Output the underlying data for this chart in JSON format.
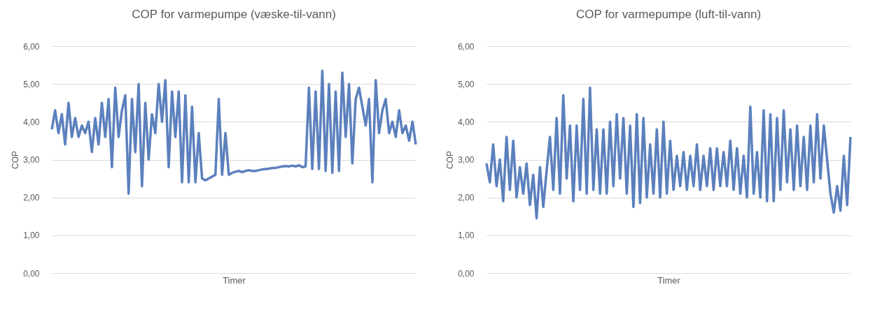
{
  "chart_data": [
    {
      "type": "line",
      "title": "COP for varmepumpe (væske-til-vann)",
      "xlabel": "Timer",
      "ylabel": "COP",
      "color": "#5b80bd",
      "grid": "y",
      "tick_labels": "y",
      "ylim": [
        0,
        6
      ],
      "yticks": [
        {
          "value": 0,
          "label": "0,00"
        },
        {
          "value": 1,
          "label": "1,00"
        },
        {
          "value": 2,
          "label": "2,00"
        },
        {
          "value": 3,
          "label": "3,00"
        },
        {
          "value": 4,
          "label": "4,00"
        },
        {
          "value": 5,
          "label": "5,00"
        },
        {
          "value": 6,
          "label": "6,00"
        }
      ],
      "categories": [
        null,
        null,
        null,
        null,
        null,
        null,
        null,
        null,
        null,
        null,
        null,
        null,
        null,
        null,
        null,
        null,
        null,
        null,
        null,
        null,
        null,
        null,
        null,
        null,
        null,
        null,
        null,
        null,
        null,
        null,
        null,
        null,
        null,
        null,
        null,
        null,
        null,
        null,
        null,
        null,
        null,
        null,
        null,
        null,
        null,
        null,
        null,
        null,
        null,
        null,
        null,
        null,
        null,
        null,
        null,
        null,
        null,
        null,
        null,
        null,
        null,
        null,
        null,
        null,
        null,
        null,
        null,
        null,
        null,
        null,
        null,
        null,
        null,
        null,
        null,
        null,
        null,
        null,
        null,
        null,
        null,
        null,
        null,
        null,
        null,
        null,
        null,
        null,
        null,
        null,
        null,
        null,
        null,
        null,
        null,
        null,
        null,
        null,
        null,
        null,
        null,
        null,
        null,
        null,
        null,
        null,
        null,
        null,
        null,
        null
      ],
      "values": [
        3.8,
        4.3,
        3.7,
        4.2,
        3.4,
        4.5,
        3.6,
        4.1,
        3.6,
        3.9,
        3.7,
        4.0,
        3.2,
        4.1,
        3.4,
        4.5,
        3.6,
        4.6,
        2.8,
        4.9,
        3.6,
        4.3,
        4.7,
        2.1,
        4.6,
        3.2,
        5.0,
        2.3,
        4.5,
        3.0,
        4.2,
        3.7,
        5.0,
        4.0,
        5.1,
        2.8,
        4.8,
        3.6,
        4.8,
        2.4,
        4.7,
        2.4,
        4.4,
        2.4,
        3.7,
        2.5,
        2.45,
        2.5,
        2.55,
        2.6,
        4.6,
        2.6,
        3.7,
        2.6,
        2.65,
        2.68,
        2.7,
        2.67,
        2.7,
        2.72,
        2.7,
        2.7,
        2.72,
        2.74,
        2.75,
        2.76,
        2.78,
        2.78,
        2.8,
        2.82,
        2.83,
        2.82,
        2.84,
        2.82,
        2.85,
        2.8,
        2.82,
        4.9,
        2.75,
        4.8,
        2.75,
        5.35,
        2.7,
        5.0,
        2.65,
        4.8,
        2.7,
        5.3,
        3.6,
        5.0,
        2.9,
        4.6,
        4.9,
        4.4,
        3.9,
        4.6,
        2.4,
        5.1,
        3.7,
        4.3,
        4.6,
        3.7,
        4.0,
        3.6,
        4.3,
        3.7,
        3.9,
        3.5,
        4.0,
        3.4
      ]
    },
    {
      "type": "line",
      "title": "COP for varmepumpe (luft-til-vann)",
      "xlabel": "Timer",
      "ylabel": "COP",
      "color": "#5b80bd",
      "grid": "y",
      "tick_labels": "y",
      "ylim": [
        0,
        6
      ],
      "yticks": [
        {
          "value": 0,
          "label": "0,00"
        },
        {
          "value": 1,
          "label": "1,00"
        },
        {
          "value": 2,
          "label": "2,00"
        },
        {
          "value": 3,
          "label": "3,00"
        },
        {
          "value": 4,
          "label": "4,00"
        },
        {
          "value": 5,
          "label": "5,00"
        },
        {
          "value": 6,
          "label": "6,00"
        }
      ],
      "categories": [
        null,
        null,
        null,
        null,
        null,
        null,
        null,
        null,
        null,
        null,
        null,
        null,
        null,
        null,
        null,
        null,
        null,
        null,
        null,
        null,
        null,
        null,
        null,
        null,
        null,
        null,
        null,
        null,
        null,
        null,
        null,
        null,
        null,
        null,
        null,
        null,
        null,
        null,
        null,
        null,
        null,
        null,
        null,
        null,
        null,
        null,
        null,
        null,
        null,
        null,
        null,
        null,
        null,
        null,
        null,
        null,
        null,
        null,
        null,
        null,
        null,
        null,
        null,
        null,
        null,
        null,
        null,
        null,
        null,
        null,
        null,
        null,
        null,
        null,
        null,
        null,
        null,
        null,
        null,
        null,
        null,
        null,
        null,
        null,
        null,
        null,
        null,
        null,
        null,
        null,
        null,
        null,
        null,
        null,
        null,
        null,
        null,
        null,
        null,
        null,
        null,
        null,
        null,
        null,
        null,
        null,
        null,
        null,
        null,
        null
      ],
      "values": [
        2.9,
        2.4,
        3.4,
        2.3,
        3.0,
        1.9,
        3.6,
        2.2,
        3.5,
        2.0,
        2.8,
        2.1,
        2.9,
        1.8,
        2.6,
        1.45,
        2.8,
        1.75,
        2.7,
        3.6,
        2.2,
        4.1,
        2.1,
        4.7,
        2.5,
        3.9,
        1.9,
        3.9,
        2.2,
        4.6,
        2.1,
        4.9,
        2.2,
        3.8,
        2.1,
        3.8,
        2.1,
        4.0,
        2.3,
        4.2,
        2.5,
        4.1,
        2.1,
        3.9,
        1.75,
        4.2,
        1.85,
        4.1,
        2.0,
        3.4,
        2.1,
        3.8,
        2.0,
        4.0,
        2.1,
        3.5,
        2.2,
        3.1,
        2.3,
        3.2,
        2.2,
        3.1,
        2.3,
        3.4,
        2.2,
        3.1,
        2.3,
        3.3,
        2.2,
        3.3,
        2.3,
        3.2,
        2.3,
        3.5,
        2.2,
        3.3,
        2.1,
        3.1,
        2.0,
        4.4,
        2.1,
        3.2,
        2.0,
        4.3,
        1.9,
        4.2,
        1.9,
        4.1,
        2.2,
        4.3,
        2.4,
        3.8,
        2.2,
        3.9,
        2.3,
        3.6,
        2.2,
        3.9,
        2.4,
        4.2,
        2.5,
        3.9,
        3.0,
        2.1,
        1.6,
        2.3,
        1.65,
        3.1,
        1.8,
        3.6
      ]
    }
  ]
}
